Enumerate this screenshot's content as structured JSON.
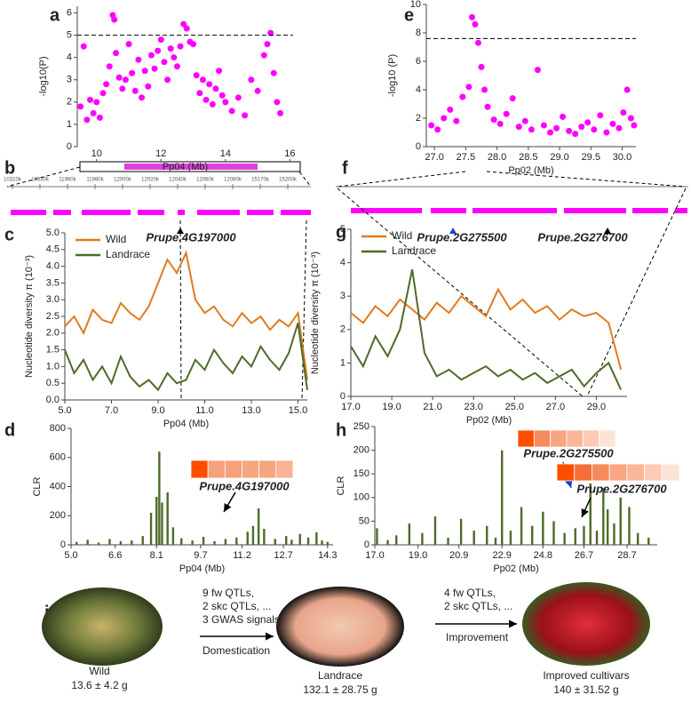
{
  "chart_data": [
    {
      "type": "scatter",
      "panel": "a",
      "color": "#ff00ff",
      "y_label": "-log10(P)",
      "x_label": "Pp04 (Mb)",
      "threshold": 5,
      "x": [
        9.5,
        9.6,
        9.7,
        9.8,
        9.9,
        10.0,
        10.1,
        10.2,
        10.3,
        10.4,
        10.5,
        10.55,
        10.6,
        10.7,
        10.8,
        10.9,
        11.0,
        11.1,
        11.2,
        11.3,
        11.4,
        11.5,
        11.6,
        11.7,
        11.8,
        11.9,
        12.0,
        12.1,
        12.2,
        12.3,
        12.4,
        12.5,
        12.6,
        12.7,
        12.8,
        12.9,
        13.0,
        13.1,
        13.2,
        13.3,
        13.4,
        13.5,
        13.6,
        13.7,
        13.8,
        13.9,
        14.0,
        14.2,
        14.4,
        14.6,
        14.8,
        15.0,
        15.2,
        15.3,
        15.4,
        15.5,
        15.6,
        15.7
      ],
      "values": [
        1.8,
        4.5,
        1.2,
        2.1,
        1.5,
        2.0,
        1.3,
        2.4,
        2.8,
        3.6,
        5.9,
        5.7,
        4.2,
        3.1,
        2.6,
        3.0,
        4.6,
        3.3,
        2.5,
        3.9,
        2.2,
        3.4,
        2.7,
        4.1,
        3.5,
        4.3,
        4.8,
        3.8,
        3.0,
        4.4,
        4.0,
        3.6,
        4.5,
        5.5,
        5.3,
        4.7,
        4.6,
        3.2,
        2.4,
        3.0,
        2.1,
        2.8,
        1.9,
        2.6,
        3.4,
        2.3,
        2.0,
        1.6,
        2.2,
        1.4,
        3.0,
        2.5,
        4.1,
        4.6,
        5.1,
        3.3,
        2.0,
        1.5
      ],
      "xlim": [
        9.4,
        16.1
      ],
      "ylim": [
        0,
        6.3
      ],
      "xticks": [
        10,
        12,
        14,
        16
      ],
      "yticks": [
        0,
        1,
        2,
        3,
        4,
        5,
        6
      ]
    },
    {
      "type": "line",
      "panel": "c",
      "y_label": "Nucleotide diversity π (10⁻³)",
      "x_label": "Pp04 (Mb)",
      "x": [
        5.0,
        5.4,
        5.8,
        6.2,
        6.6,
        7.0,
        7.4,
        7.8,
        8.2,
        8.6,
        9.0,
        9.4,
        9.8,
        10.2,
        10.6,
        11.0,
        11.4,
        11.8,
        12.2,
        12.6,
        13.0,
        13.4,
        13.8,
        14.2,
        14.6,
        15.0,
        15.4
      ],
      "series": [
        {
          "name": "Wild",
          "color": "#e07b1f",
          "values": [
            2.2,
            2.5,
            2.0,
            2.7,
            2.4,
            2.3,
            2.9,
            2.6,
            2.4,
            2.8,
            3.5,
            4.2,
            3.8,
            4.4,
            3.0,
            2.6,
            2.8,
            2.4,
            2.2,
            2.6,
            2.3,
            2.5,
            2.1,
            2.4,
            2.2,
            2.6,
            0.6
          ]
        },
        {
          "name": "Landrace",
          "color": "#4d6b2a",
          "values": [
            1.5,
            0.8,
            1.2,
            0.6,
            1.0,
            0.5,
            1.3,
            0.7,
            0.4,
            0.6,
            0.3,
            0.8,
            0.5,
            0.6,
            1.2,
            0.9,
            1.5,
            1.1,
            0.8,
            1.3,
            1.0,
            1.6,
            1.2,
            0.9,
            1.4,
            2.3,
            0.3
          ]
        }
      ],
      "xlim": [
        5.0,
        15.4
      ],
      "ylim": [
        0,
        5
      ],
      "xticks": [
        {
          "value": 5,
          "label": "5.0"
        },
        {
          "value": 7,
          "label": "7.0"
        },
        {
          "value": 9,
          "label": "9.0"
        },
        {
          "value": 11,
          "label": "11.0"
        },
        {
          "value": 13,
          "label": "13.0"
        },
        {
          "value": 15,
          "label": "15.0"
        }
      ],
      "yticks": [
        {
          "value": 0,
          "label": "0.0"
        },
        0.5,
        {
          "value": 1,
          "label": "1.0"
        },
        1.5,
        {
          "value": 2,
          "label": "2.0"
        },
        2.5,
        {
          "value": 3,
          "label": "3.0"
        },
        3.5,
        {
          "value": 4,
          "label": "4.0"
        },
        4.5,
        {
          "value": 5,
          "label": "5.0"
        }
      ]
    },
    {
      "type": "bar",
      "panel": "d",
      "color": "#4d6b2a",
      "y_label": "CLR",
      "x_label": "Pp04 (Mb)",
      "x": [
        5.2,
        5.6,
        6.0,
        6.4,
        6.8,
        7.2,
        7.6,
        7.9,
        8.1,
        8.2,
        8.3,
        8.5,
        8.7,
        9.0,
        9.4,
        9.8,
        10.2,
        10.6,
        11.0,
        11.4,
        11.6,
        11.8,
        12.0,
        12.4,
        12.8,
        13.0,
        13.3,
        13.6,
        13.9,
        14.1,
        14.3
      ],
      "values": [
        20,
        35,
        15,
        40,
        25,
        30,
        60,
        220,
        330,
        640,
        290,
        360,
        120,
        45,
        30,
        55,
        25,
        40,
        50,
        90,
        130,
        250,
        110,
        40,
        60,
        35,
        75,
        50,
        85,
        30,
        20
      ],
      "xlim": [
        5.0,
        14.5
      ],
      "ylim": [
        0,
        800
      ],
      "xticks": [
        {
          "value": 5,
          "label": "5.0"
        },
        6.6,
        8.1,
        9.7,
        11.2,
        12.7,
        14.3
      ],
      "yticks": [
        0,
        200,
        400,
        600,
        800
      ],
      "annotations": [
        {
          "label": "Prupe.4G197000",
          "colors": [
            "#ff4d00",
            "#f7a17c",
            "#f7a17c",
            "#f7a681",
            "#f7a681",
            "#f9b295"
          ]
        }
      ]
    },
    {
      "type": "scatter",
      "panel": "e",
      "color": "#ff00ff",
      "y_label": "-log10 (P)",
      "x_label": "Pp02 (Mb)",
      "threshold": 7.6,
      "x": [
        26.95,
        27.05,
        27.15,
        27.25,
        27.35,
        27.45,
        27.55,
        27.6,
        27.65,
        27.7,
        27.75,
        27.8,
        27.85,
        27.95,
        28.05,
        28.15,
        28.25,
        28.35,
        28.45,
        28.55,
        28.65,
        28.75,
        28.85,
        28.95,
        29.05,
        29.15,
        29.25,
        29.35,
        29.45,
        29.55,
        29.65,
        29.75,
        29.85,
        29.95,
        30.02,
        30.08,
        30.14,
        30.19
      ],
      "values": [
        1.5,
        1.2,
        2.0,
        2.6,
        1.8,
        3.5,
        4.2,
        9.1,
        8.6,
        7.3,
        5.6,
        4.0,
        2.8,
        1.9,
        1.6,
        2.3,
        3.4,
        1.4,
        1.8,
        1.2,
        5.4,
        1.5,
        1.0,
        1.3,
        2.1,
        1.1,
        0.9,
        1.4,
        1.7,
        1.2,
        2.2,
        1.0,
        1.6,
        1.3,
        2.4,
        4.0,
        2.0,
        1.5
      ],
      "xlim": [
        26.87,
        30.22
      ],
      "ylim": [
        0,
        10
      ],
      "xticks": [
        {
          "value": 27,
          "label": "27.0"
        },
        27.5,
        {
          "value": 28,
          "label": "28.0"
        },
        28.5,
        {
          "value": 29,
          "label": "29.0"
        },
        29.5,
        {
          "value": 30,
          "label": "30.0"
        }
      ],
      "yticks": [
        0,
        2,
        4,
        6,
        8,
        10
      ]
    },
    {
      "type": "line",
      "panel": "g",
      "y_label": "Nucleotide diversity π (10⁻³)",
      "x_label": "Pp02 (Mb)",
      "x": [
        17.0,
        17.6,
        18.2,
        18.8,
        19.4,
        20.0,
        20.6,
        21.2,
        21.8,
        22.4,
        23.0,
        23.6,
        24.2,
        24.8,
        25.4,
        26.0,
        26.6,
        27.2,
        27.8,
        28.4,
        29.0,
        29.6,
        30.2
      ],
      "series": [
        {
          "name": "Wild",
          "color": "#e07b1f",
          "values": [
            2.5,
            2.2,
            2.7,
            2.4,
            2.9,
            2.6,
            2.3,
            2.8,
            2.5,
            3.0,
            2.7,
            2.4,
            3.2,
            2.6,
            2.9,
            2.5,
            2.7,
            2.3,
            2.6,
            2.4,
            2.5,
            2.2,
            0.8
          ]
        },
        {
          "name": "Landrace",
          "color": "#4d6b2a",
          "values": [
            1.5,
            0.9,
            1.8,
            1.2,
            2.0,
            3.8,
            1.3,
            0.6,
            0.8,
            0.5,
            0.7,
            0.9,
            0.6,
            0.8,
            0.5,
            0.7,
            0.4,
            0.6,
            0.8,
            0.3,
            0.7,
            1.0,
            0.2
          ]
        }
      ],
      "xlim": [
        17,
        30.5
      ],
      "ylim": [
        0,
        5
      ],
      "xticks": [
        {
          "value": 17,
          "label": "17.0"
        },
        {
          "value": 19,
          "label": "19.0"
        },
        {
          "value": 21,
          "label": "21.0"
        },
        {
          "value": 23,
          "label": "23.0"
        },
        {
          "value": 25,
          "label": "25.0"
        },
        {
          "value": 27,
          "label": "27.0"
        },
        {
          "value": 29,
          "label": "29.0"
        }
      ],
      "yticks": [
        0,
        1,
        2,
        3,
        4,
        5
      ]
    },
    {
      "type": "bar",
      "panel": "h",
      "color": "#4d6b2a",
      "y_label": "CLR",
      "x_label": "Pp02 (Mb)",
      "x": [
        17.1,
        17.6,
        18.0,
        18.6,
        19.2,
        19.8,
        20.4,
        21.0,
        21.6,
        22.2,
        22.6,
        22.9,
        23.3,
        23.8,
        24.3,
        24.8,
        25.3,
        25.8,
        26.3,
        26.7,
        27.0,
        27.3,
        27.6,
        27.8,
        28.1,
        28.4,
        28.8,
        29.2,
        29.7
      ],
      "values": [
        35,
        10,
        20,
        45,
        25,
        60,
        15,
        55,
        30,
        40,
        15,
        200,
        30,
        80,
        40,
        70,
        50,
        25,
        35,
        40,
        130,
        30,
        120,
        75,
        45,
        100,
        80,
        25,
        15
      ],
      "xlim": [
        17,
        30.1
      ],
      "ylim": [
        0,
        250
      ],
      "xticks": [
        {
          "value": 17,
          "label": "17.0"
        },
        {
          "value": 19,
          "label": "19.0"
        },
        20.9,
        22.9,
        24.8,
        26.7,
        28.7
      ],
      "yticks": [
        0,
        50,
        100,
        150,
        200,
        250
      ],
      "annotations": [
        {
          "label": "Prupe.2G275500",
          "colors": [
            "#ff4d00",
            "#f78a5c",
            "#f8a583",
            "#f9b79a",
            "#fbcbb6",
            "#fde3d6"
          ]
        },
        {
          "label": "Prupe.2G276700",
          "colors": [
            "#ff4d00",
            "#f56e3a",
            "#f78a5c",
            "#f8a583",
            "#f9b79a",
            "#fbcbb6",
            "#fde3d6"
          ]
        }
      ]
    }
  ],
  "gene_track_b": {
    "panel": "b",
    "ticks": [
      "10310k",
      "10330k",
      "11960k",
      "11980k",
      "12000k",
      "12020k",
      "12040k",
      "12060k",
      "12080k",
      "15170k",
      "15200k"
    ],
    "gene": "Prupe.4G197000"
  },
  "gene_track_f": {
    "panel": "f",
    "genes": [
      "Prupe.2G275500",
      "Prupe.2G276700"
    ]
  },
  "panel_i": {
    "panel": "i",
    "domestication": [
      "9 fw QTLs,",
      "2 skc QTLs, ...",
      "3 GWAS signals"
    ],
    "domestication_label": "Domestication",
    "improvement": [
      "4 fw QTLs,",
      "2 skc QTLs, ..."
    ],
    "improvement_label": "Improvement",
    "stages": [
      {
        "name": "Wild",
        "weight": "13.6 ± 4.2 g"
      },
      {
        "name": "Landrace",
        "weight": "132.1 ± 28.75 g"
      },
      {
        "name": "Improved cultivars",
        "weight": "140 ± 31.52 g"
      }
    ]
  }
}
